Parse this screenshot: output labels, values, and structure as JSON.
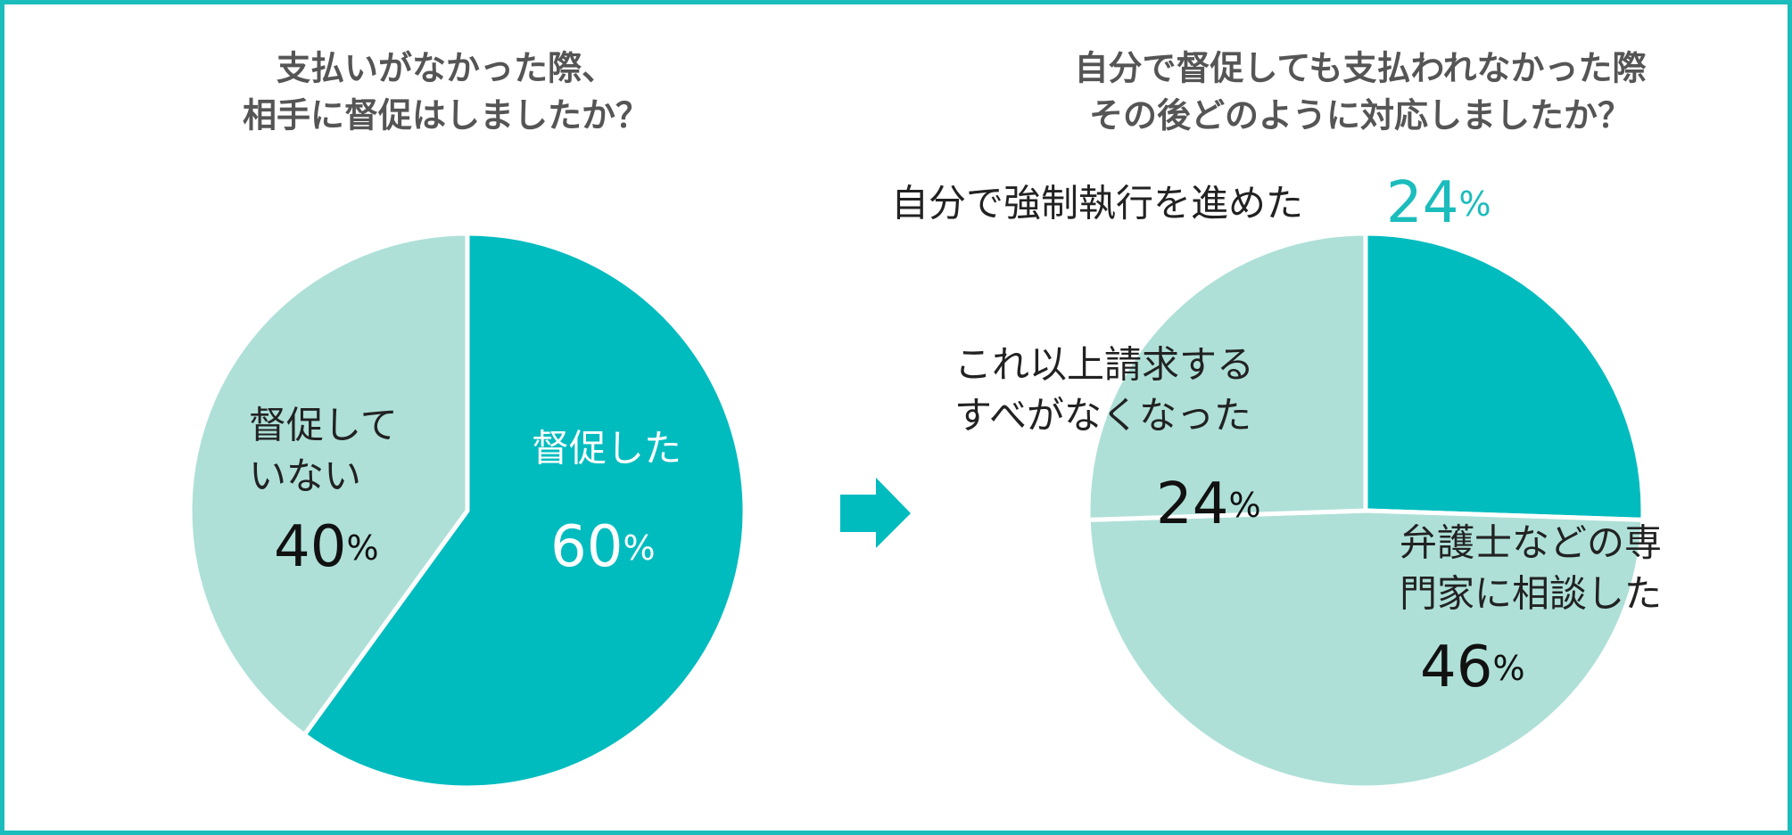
{
  "chart_data": [
    {
      "type": "pie",
      "title": [
        "支払いがなかった際、",
        "相手に督促はしましたか？"
      ],
      "categories": [
        [
          "督促した"
        ],
        [
          "督促して",
          "いない"
        ]
      ],
      "values": [
        60,
        40
      ],
      "colors": [
        "#00bcbf",
        "#aee0d8"
      ],
      "unit": "%"
    },
    {
      "type": "pie",
      "title": [
        "自分で督促しても支払われなかった際",
        "その後どのように対応しましたか？"
      ],
      "categories": [
        [
          "自分で強制執行を進めた"
        ],
        [
          "弁護士などの専",
          "門家に相談した"
        ],
        [
          "これ以上請求する",
          "すべがなくなった"
        ]
      ],
      "values": [
        24,
        46,
        24
      ],
      "colors": [
        "#00bcbf",
        "#aee0d8",
        "#aee0d8"
      ],
      "unit": "%"
    }
  ]
}
